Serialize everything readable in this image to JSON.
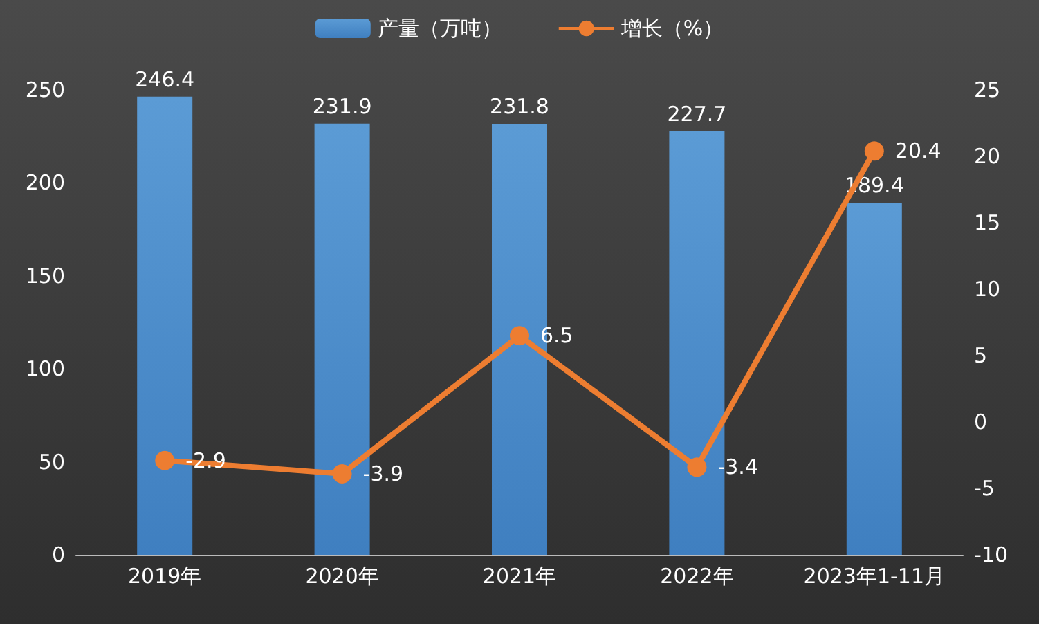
{
  "chart_data": {
    "type": "bar",
    "categories": [
      "2019年",
      "2020年",
      "2021年",
      "2022年",
      "2023年1-11月"
    ],
    "series": [
      {
        "name": "产量（万吨）",
        "color": "#5b9bd5",
        "values": [
          246.4,
          231.9,
          231.8,
          227.7,
          189.4
        ]
      },
      {
        "name": "增长（%）",
        "type": "line",
        "axis": "y2",
        "color": "#ed7d31",
        "values": [
          -2.9,
          -3.9,
          6.5,
          -3.4,
          20.4
        ]
      }
    ],
    "ylim": [
      0,
      250
    ],
    "yticks": [
      0,
      50,
      100,
      150,
      200,
      250
    ],
    "y2lim": [
      -10,
      25
    ],
    "y2ticks": [
      -10,
      -5,
      0,
      5,
      10,
      15,
      20,
      25
    ],
    "data_labels": true,
    "legend": "top",
    "grid": false,
    "marker": "circle",
    "line_style": "solid"
  }
}
